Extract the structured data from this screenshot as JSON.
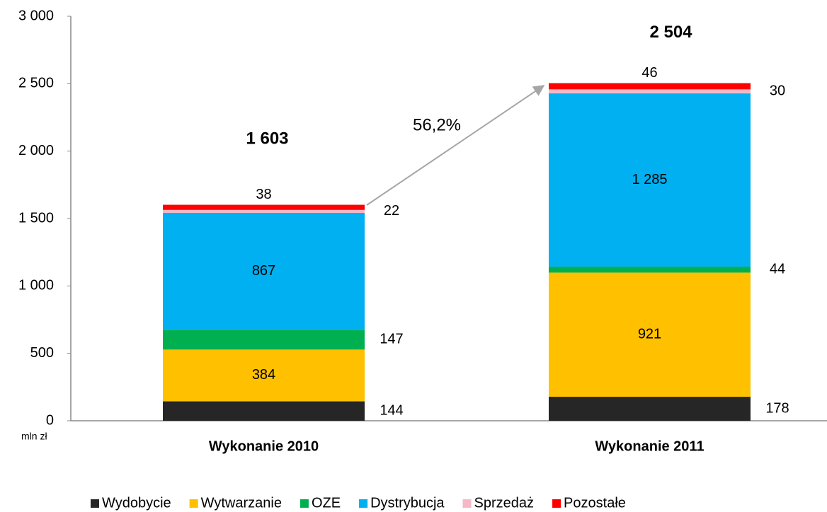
{
  "chart_data": {
    "type": "stacked_bar",
    "y_unit_label": "mln zł",
    "categories": [
      "Wykonanie 2010",
      "Wykonanie 2011"
    ],
    "series": [
      {
        "name": "Wydobycie",
        "color": "#262626",
        "values": [
          144,
          178
        ]
      },
      {
        "name": "Wytwarzanie",
        "color": "#ffc000",
        "values": [
          384,
          921
        ]
      },
      {
        "name": "OZE",
        "color": "#00b050",
        "values": [
          147,
          44
        ]
      },
      {
        "name": "Dystrybucja",
        "color": "#00b0f0",
        "values": [
          867,
          1285
        ],
        "value_labels": [
          "867",
          "1 285"
        ]
      },
      {
        "name": "Sprzedaż",
        "color": "#f4b8c8",
        "values": [
          22,
          30
        ]
      },
      {
        "name": "Pozostałe",
        "color": "#ff0000",
        "values": [
          38,
          46
        ]
      }
    ],
    "totals": {
      "values": [
        1603,
        2504
      ],
      "value_labels": [
        "1 603",
        "2 504"
      ]
    },
    "annotation": "56,2%",
    "ylim": [
      0,
      3000
    ],
    "yticks": [
      0,
      500,
      {
        "value": 1000,
        "label": "1 000"
      },
      {
        "value": 1500,
        "label": "1 500"
      },
      {
        "value": 2000,
        "label": "2 000"
      },
      {
        "value": 2500,
        "label": "2 500"
      },
      {
        "value": 3000,
        "label": "3 000"
      }
    ],
    "grid": false,
    "legend": "bottom"
  }
}
